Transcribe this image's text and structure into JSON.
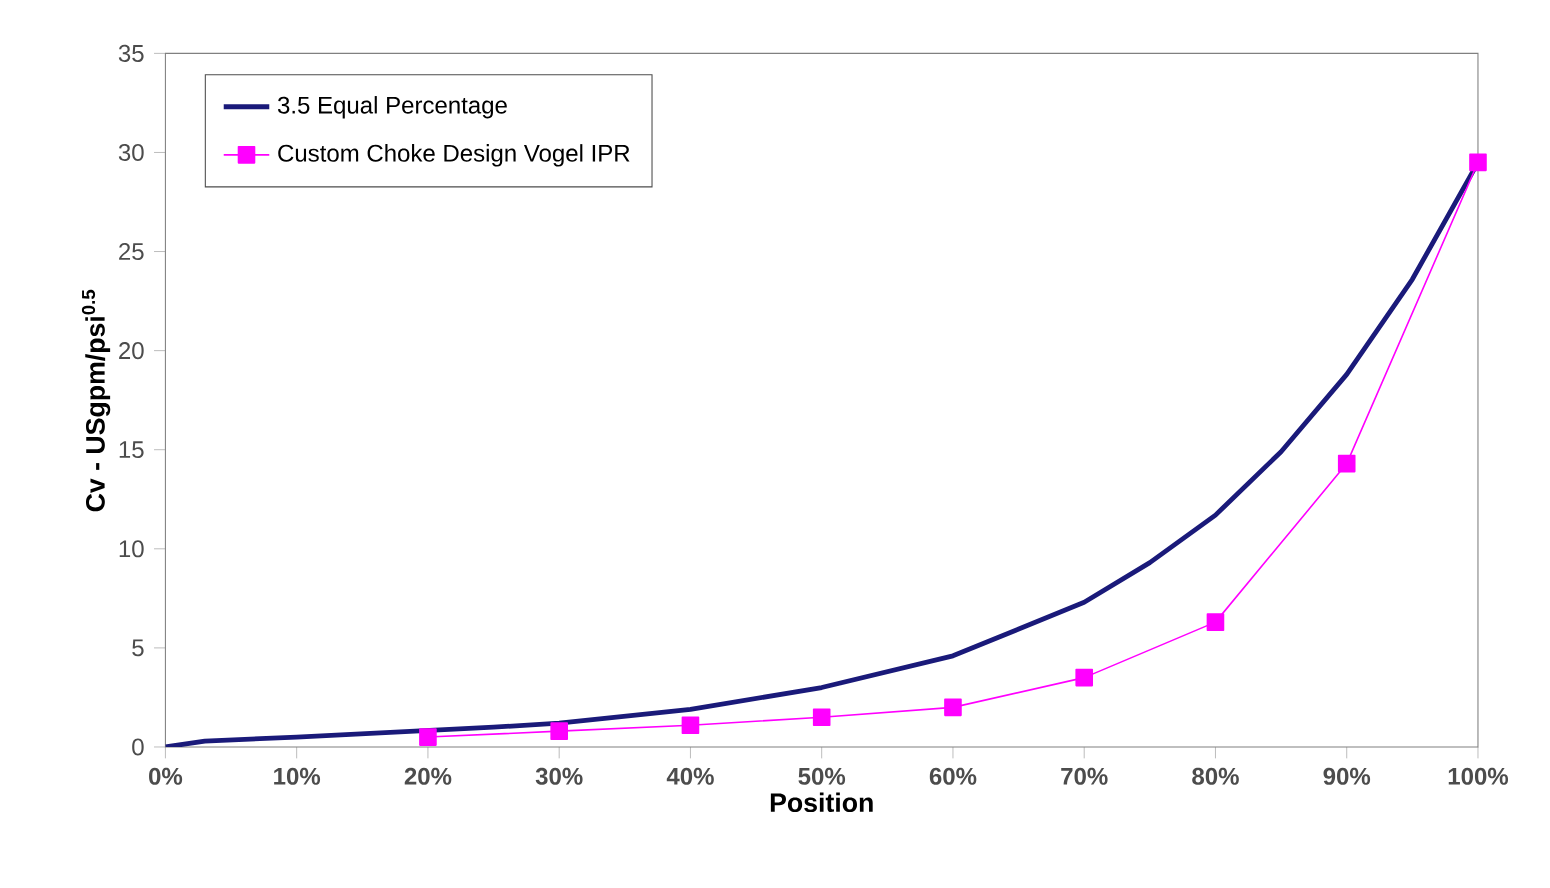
{
  "chart_data": {
    "type": "line",
    "xlabel": "Position",
    "ylabel": "Cv - USgpm/psi$^{0.5}$",
    "xlim": [
      0,
      100
    ],
    "ylim": [
      0,
      35
    ],
    "xticks": [
      {
        "value": 0,
        "label": "0%"
      },
      {
        "value": 10,
        "label": "10%"
      },
      {
        "value": 20,
        "label": "20%"
      },
      {
        "value": 30,
        "label": "30%"
      },
      {
        "value": 40,
        "label": "40%"
      },
      {
        "value": 50,
        "label": "50%"
      },
      {
        "value": 60,
        "label": "60%"
      },
      {
        "value": 70,
        "label": "70%"
      },
      {
        "value": 80,
        "label": "80%"
      },
      {
        "value": 90,
        "label": "90%"
      },
      {
        "value": 100,
        "label": "100%"
      }
    ],
    "yticks": [
      0,
      5,
      10,
      15,
      20,
      25,
      30,
      35
    ],
    "grid": false,
    "legend": "top left",
    "series": [
      {
        "name": "3.5 Equal Percentage",
        "color": "#1a1a7a",
        "marker": "none",
        "x": [
          0,
          3,
          10,
          25,
          30,
          40,
          50,
          60,
          70,
          75,
          80,
          85,
          90,
          95,
          100
        ],
        "values": [
          0,
          0.3,
          0.5,
          1.0,
          1.2,
          1.9,
          3.0,
          4.6,
          7.3,
          9.3,
          11.7,
          14.9,
          18.8,
          23.6,
          29.5
        ]
      },
      {
        "name": "Custom Choke Design Vogel IPR",
        "color": "#ff00ff",
        "marker": "square",
        "x": [
          20,
          30,
          40,
          50,
          60,
          70,
          80,
          90,
          100
        ],
        "values": [
          0.5,
          0.8,
          1.1,
          1.5,
          2.0,
          3.5,
          6.3,
          14.3,
          29.5
        ]
      }
    ]
  }
}
